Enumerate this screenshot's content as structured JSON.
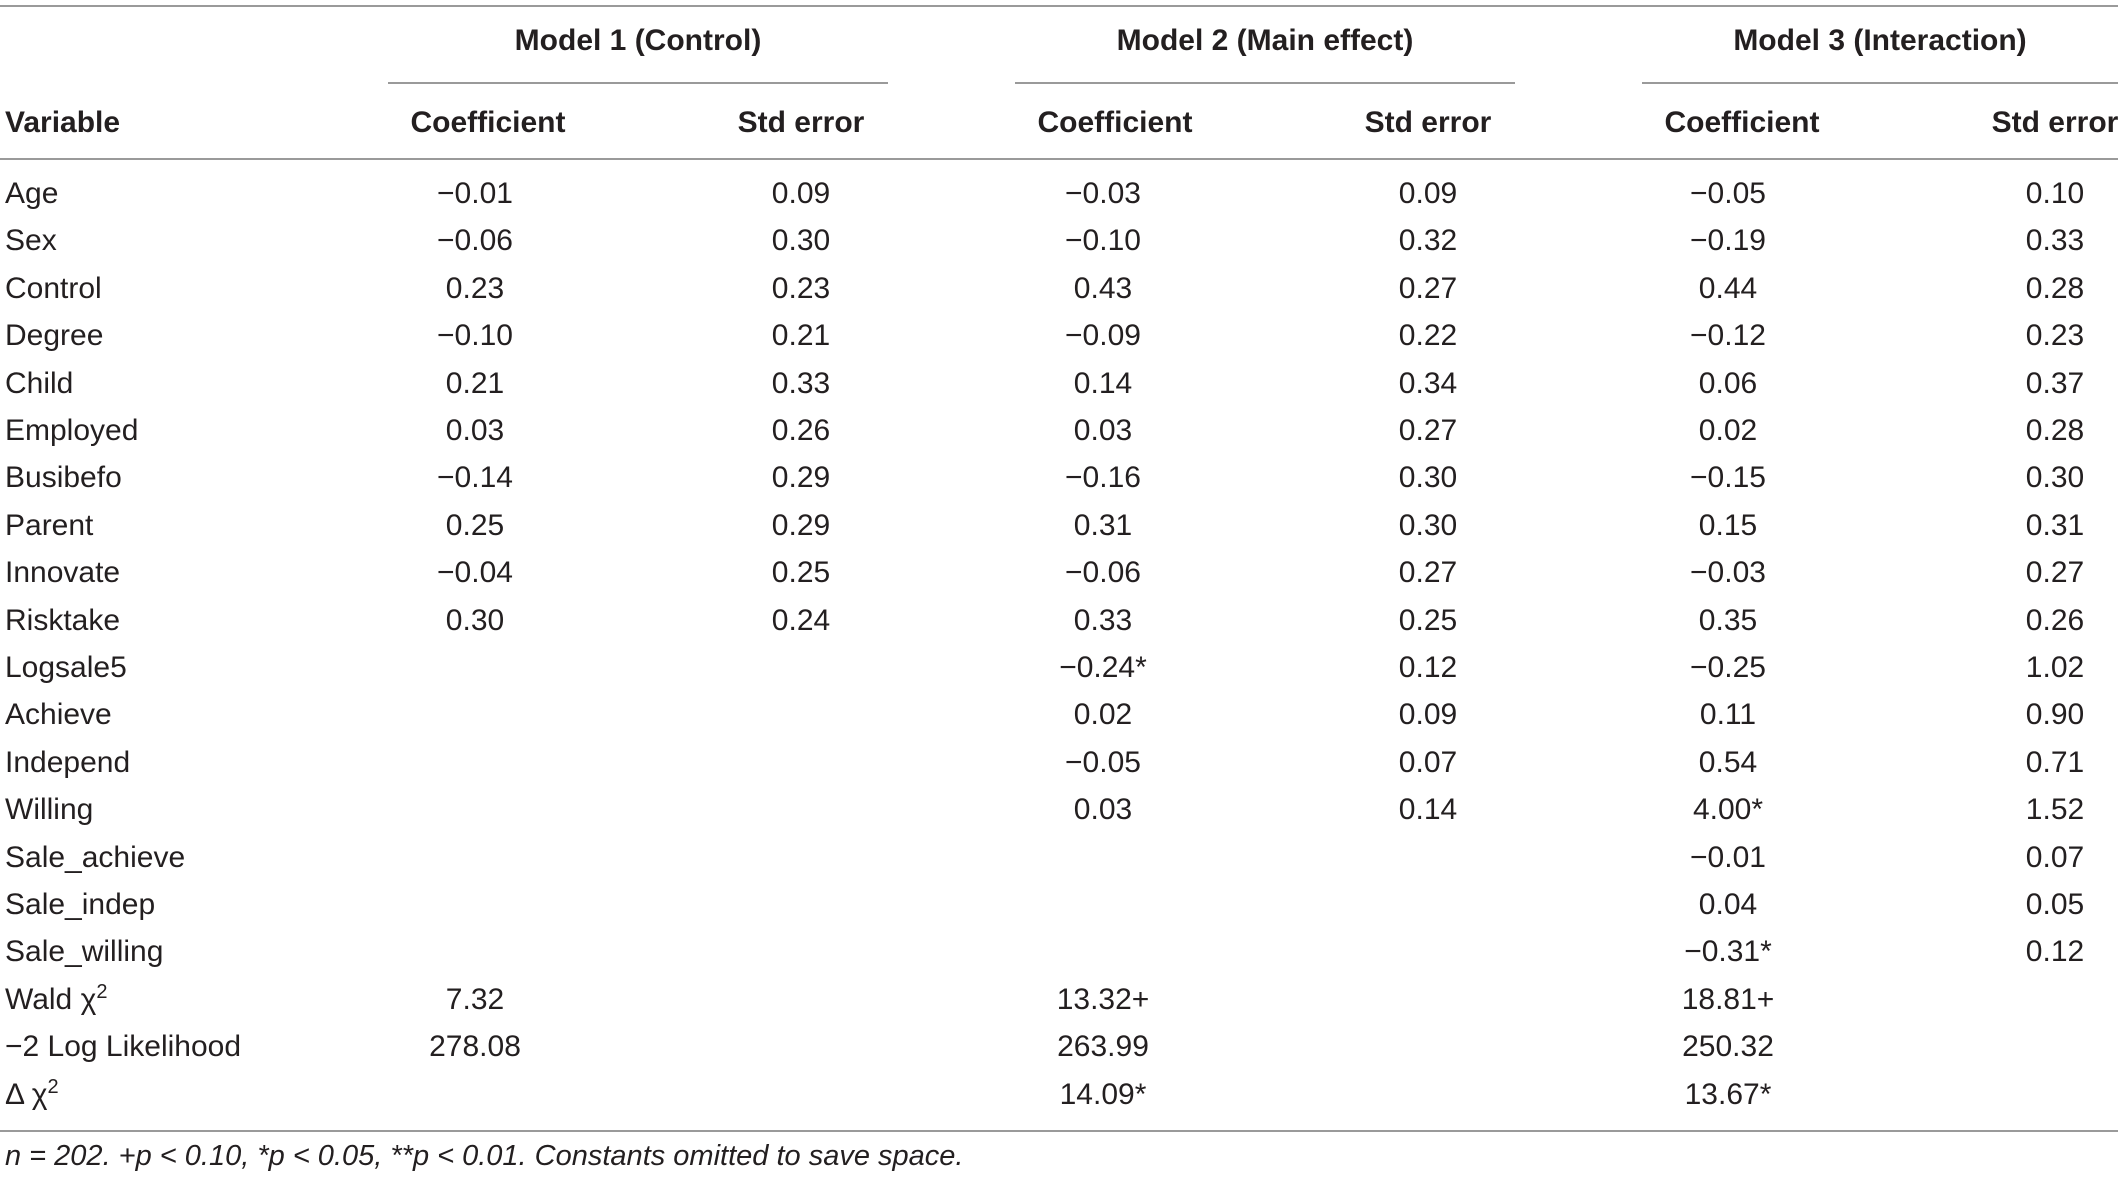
{
  "table": {
    "model_headers": [
      "Model 1 (Control)",
      "Model 2 (Main effect)",
      "Model 3 (Interaction)"
    ],
    "column_headers": [
      "Variable",
      "Coefficient",
      "Std error",
      "Coefficient",
      "Std error",
      "Coefficient",
      "Std error"
    ],
    "rows": [
      {
        "variable": "Age",
        "values": [
          "−0.01",
          "0.09",
          "−0.03",
          "0.09",
          "−0.05",
          "0.10"
        ]
      },
      {
        "variable": "Sex",
        "values": [
          "−0.06",
          "0.30",
          "−0.10",
          "0.32",
          "−0.19",
          "0.33"
        ]
      },
      {
        "variable": "Control",
        "values": [
          "0.23",
          "0.23",
          "0.43",
          "0.27",
          "0.44",
          "0.28"
        ]
      },
      {
        "variable": "Degree",
        "values": [
          "−0.10",
          "0.21",
          "−0.09",
          "0.22",
          "−0.12",
          "0.23"
        ]
      },
      {
        "variable": "Child",
        "values": [
          "0.21",
          "0.33",
          "0.14",
          "0.34",
          "0.06",
          "0.37"
        ]
      },
      {
        "variable": "Employed",
        "values": [
          "0.03",
          "0.26",
          "0.03",
          "0.27",
          "0.02",
          "0.28"
        ]
      },
      {
        "variable": "Busibefo",
        "values": [
          "−0.14",
          "0.29",
          "−0.16",
          "0.30",
          "−0.15",
          "0.30"
        ]
      },
      {
        "variable": "Parent",
        "values": [
          "0.25",
          "0.29",
          "0.31",
          "0.30",
          "0.15",
          "0.31"
        ]
      },
      {
        "variable": "Innovate",
        "values": [
          "−0.04",
          "0.25",
          "−0.06",
          "0.27",
          "−0.03",
          "0.27"
        ]
      },
      {
        "variable": "Risktake",
        "values": [
          "0.30",
          "0.24",
          "0.33",
          "0.25",
          "0.35",
          "0.26"
        ]
      },
      {
        "variable": "Logsale5",
        "values": [
          "",
          "",
          "−0.24*",
          "0.12",
          "−0.25",
          "1.02"
        ]
      },
      {
        "variable": "Achieve",
        "values": [
          "",
          "",
          "0.02",
          "0.09",
          "0.11",
          "0.90"
        ]
      },
      {
        "variable": "Independ",
        "values": [
          "",
          "",
          "−0.05",
          "0.07",
          "0.54",
          "0.71"
        ]
      },
      {
        "variable": "Willing",
        "values": [
          "",
          "",
          "0.03",
          "0.14",
          "4.00*",
          "1.52"
        ]
      },
      {
        "variable": "Sale_achieve",
        "values": [
          "",
          "",
          "",
          "",
          "−0.01",
          "0.07"
        ]
      },
      {
        "variable": "Sale_indep",
        "values": [
          "",
          "",
          "",
          "",
          "0.04",
          "0.05"
        ]
      },
      {
        "variable": "Sale_willing",
        "values": [
          "",
          "",
          "",
          "",
          "−0.31*",
          "0.12"
        ]
      },
      {
        "variable": "Wald χ",
        "sup": "2",
        "values": [
          "7.32",
          "",
          "13.32+",
          "",
          "18.81+",
          ""
        ]
      },
      {
        "variable": "−2 Log Likelihood",
        "values": [
          "278.08",
          "",
          "263.99",
          "",
          "250.32",
          ""
        ]
      },
      {
        "variable": "Δ χ",
        "sup": "2",
        "values": [
          "",
          "",
          "14.09*",
          "",
          "13.67*",
          ""
        ]
      }
    ],
    "note": "n = 202. +p < 0.10, *p < 0.05, **p < 0.01. Constants omitted to save space."
  }
}
